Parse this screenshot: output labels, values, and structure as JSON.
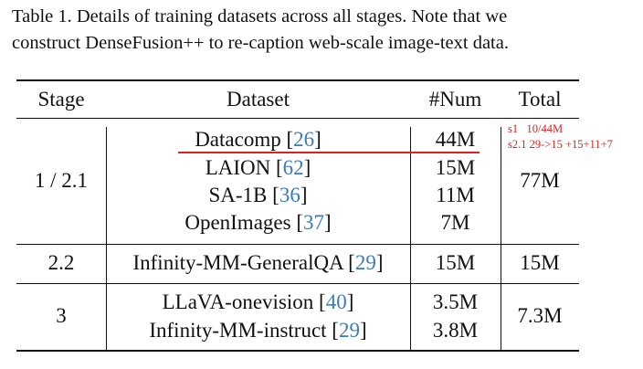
{
  "caption": {
    "line1": "Table 1. Details of training datasets across all stages. Note that we",
    "line2": "construct DenseFusion++ to re-caption web-scale image-text data."
  },
  "headers": {
    "stage": "Stage",
    "dataset": "Dataset",
    "num": "#Num",
    "total": "Total"
  },
  "groups": [
    {
      "stage": "1 / 2.1",
      "total": "77M",
      "rows": [
        {
          "name": "Datacomp [",
          "ref": "26",
          "close": "]",
          "num": "44M"
        },
        {
          "name": "LAION [",
          "ref": "62",
          "close": "]",
          "num": "15M"
        },
        {
          "name": "SA-1B [",
          "ref": "36",
          "close": "]",
          "num": "11M"
        },
        {
          "name": "OpenImages [",
          "ref": "37",
          "close": "]",
          "num": "7M"
        }
      ]
    },
    {
      "stage": "2.2",
      "total": "15M",
      "rows": [
        {
          "name": "Infinity-MM-GeneralQA [",
          "ref": "29",
          "close": "]",
          "num": "15M"
        }
      ]
    },
    {
      "stage": "3",
      "total": "7.3M",
      "rows": [
        {
          "name": "LLaVA-onevision [",
          "ref": "40",
          "close": "]",
          "num": "3.5M"
        },
        {
          "name": "Infinity-MM-instruct [",
          "ref": "29",
          "close": "]",
          "num": "3.8M"
        }
      ]
    }
  ],
  "annotations": {
    "line1": "s1   10/44M",
    "line2": "s2.1 29->15 +15+11+7"
  },
  "colors": {
    "text": "#111111",
    "reference": "#3a7bbf",
    "annotation": "#e0201f"
  }
}
